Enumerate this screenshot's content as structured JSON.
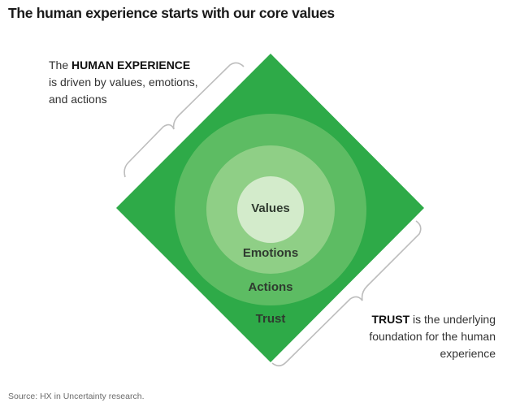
{
  "title": "The human experience starts with our core values",
  "left_note": {
    "prefix": "The ",
    "bold": "HUMAN EXPERIENCE",
    "rest": "is driven by values, emotions, and actions"
  },
  "right_note": {
    "bold": "TRUST",
    "rest": " is the underlying foundation for the human experience"
  },
  "layers": {
    "values": "Values",
    "emotions": "Emotions",
    "actions": "Actions",
    "trust": "Trust"
  },
  "colors": {
    "trust": "#2eaa48",
    "actions": "#5dbc63",
    "emotions": "#8fcf86",
    "values": "#d3ebcb",
    "bracket": "#bdbdbd"
  },
  "source": "Source: HX in Uncertainty research."
}
